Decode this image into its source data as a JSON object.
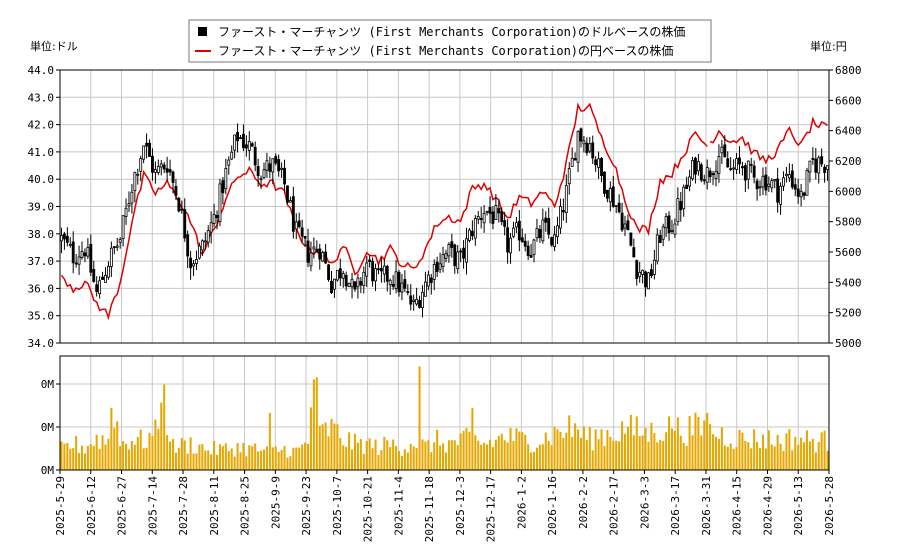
{
  "chart_data": {
    "type": "candlestick",
    "left_unit_label": "単位:ドル",
    "right_unit_label": "単位:円",
    "legend": [
      {
        "label": "ファースト・マーチャンツ (First Merchants Corporation)のドルベースの株価",
        "color": "#000000",
        "marker": "square"
      },
      {
        "label": "ファースト・マーチャンツ (First Merchants Corporation)の円ベースの株価",
        "color": "#dd0000",
        "marker": "line"
      }
    ],
    "y_left": {
      "min": 34.0,
      "max": 44.0,
      "ticks": [
        "34.0",
        "35.0",
        "36.0",
        "37.0",
        "38.0",
        "39.0",
        "40.0",
        "41.0",
        "42.0",
        "43.0",
        "44.0"
      ]
    },
    "y_right": {
      "min": 5000,
      "max": 6800,
      "ticks": [
        "5000",
        "5200",
        "5400",
        "5600",
        "5800",
        "6000",
        "6200",
        "6400",
        "6600",
        "6800"
      ]
    },
    "volume_axis": {
      "ticks": [
        "0M",
        "0M",
        "0M"
      ]
    },
    "x_ticks": [
      "2025-5-29",
      "2025-6-12",
      "2025-6-27",
      "2025-7-14",
      "2025-7-28",
      "2025-8-11",
      "2025-8-25",
      "2025-9-9",
      "2025-9-23",
      "2025-10-7",
      "2025-10-21",
      "2025-11-4",
      "2025-11-18",
      "2025-12-3",
      "2025-12-17",
      "2026-1-2",
      "2026-1-16",
      "2026-2-2",
      "2026-2-17",
      "2026-3-3",
      "2026-3-17",
      "2026-3-31",
      "2026-4-15",
      "2026-4-29",
      "2026-5-13",
      "2026-5-28"
    ],
    "close_anchors": [
      [
        0,
        37.8
      ],
      [
        4,
        37.2
      ],
      [
        8,
        37.5
      ],
      [
        12,
        35.8
      ],
      [
        16,
        37.0
      ],
      [
        20,
        37.8
      ],
      [
        24,
        39.8
      ],
      [
        28,
        41.3
      ],
      [
        32,
        40.2
      ],
      [
        36,
        40.6
      ],
      [
        40,
        39.2
      ],
      [
        44,
        37.0
      ],
      [
        48,
        37.5
      ],
      [
        52,
        38.6
      ],
      [
        56,
        40.2
      ],
      [
        60,
        41.6
      ],
      [
        64,
        41.2
      ],
      [
        68,
        40.3
      ],
      [
        72,
        40.5
      ],
      [
        76,
        39.8
      ],
      [
        80,
        38.0
      ],
      [
        84,
        37.3
      ],
      [
        88,
        37.5
      ],
      [
        92,
        36.2
      ],
      [
        96,
        36.8
      ],
      [
        100,
        35.7
      ],
      [
        104,
        36.9
      ],
      [
        108,
        36.3
      ],
      [
        112,
        36.5
      ],
      [
        116,
        36.0
      ],
      [
        120,
        35.3
      ],
      [
        124,
        36.2
      ],
      [
        128,
        37.0
      ],
      [
        132,
        37.3
      ],
      [
        136,
        37.0
      ],
      [
        140,
        38.2
      ],
      [
        144,
        38.9
      ],
      [
        148,
        38.6
      ],
      [
        152,
        37.6
      ],
      [
        156,
        38.1
      ],
      [
        160,
        37.4
      ],
      [
        164,
        38.2
      ],
      [
        168,
        37.7
      ],
      [
        172,
        39.5
      ],
      [
        176,
        41.7
      ],
      [
        180,
        41.3
      ],
      [
        184,
        40.1
      ],
      [
        188,
        39.3
      ],
      [
        192,
        38.3
      ],
      [
        196,
        36.8
      ],
      [
        200,
        36.2
      ],
      [
        204,
        38.0
      ],
      [
        208,
        38.4
      ],
      [
        212,
        39.4
      ],
      [
        216,
        40.6
      ],
      [
        220,
        40.2
      ],
      [
        224,
        40.9
      ],
      [
        228,
        40.3
      ],
      [
        232,
        40.5
      ],
      [
        236,
        40.0
      ],
      [
        240,
        40.0
      ],
      [
        244,
        39.6
      ],
      [
        248,
        40.2
      ],
      [
        252,
        39.3
      ],
      [
        256,
        40.6
      ],
      [
        260,
        40.6
      ]
    ],
    "jpy_anchors": [
      [
        0,
        5450
      ],
      [
        4,
        5360
      ],
      [
        8,
        5400
      ],
      [
        12,
        5260
      ],
      [
        16,
        5180
      ],
      [
        20,
        5400
      ],
      [
        24,
        5800
      ],
      [
        28,
        6100
      ],
      [
        32,
        5990
      ],
      [
        36,
        6050
      ],
      [
        40,
        5950
      ],
      [
        44,
        5800
      ],
      [
        48,
        5580
      ],
      [
        52,
        5750
      ],
      [
        56,
        5950
      ],
      [
        60,
        6100
      ],
      [
        64,
        6130
      ],
      [
        68,
        6050
      ],
      [
        72,
        6050
      ],
      [
        76,
        5980
      ],
      [
        80,
        5750
      ],
      [
        84,
        5620
      ],
      [
        88,
        5600
      ],
      [
        92,
        5510
      ],
      [
        96,
        5650
      ],
      [
        100,
        5450
      ],
      [
        104,
        5620
      ],
      [
        108,
        5540
      ],
      [
        112,
        5620
      ],
      [
        116,
        5520
      ],
      [
        120,
        5480
      ],
      [
        124,
        5620
      ],
      [
        128,
        5790
      ],
      [
        132,
        5830
      ],
      [
        136,
        5800
      ],
      [
        140,
        6020
      ],
      [
        144,
        6050
      ],
      [
        148,
        5950
      ],
      [
        152,
        5820
      ],
      [
        156,
        5960
      ],
      [
        160,
        5920
      ],
      [
        164,
        6000
      ],
      [
        168,
        5900
      ],
      [
        172,
        6180
      ],
      [
        176,
        6550
      ],
      [
        180,
        6550
      ],
      [
        184,
        6350
      ],
      [
        188,
        6200
      ],
      [
        192,
        5950
      ],
      [
        196,
        5750
      ],
      [
        200,
        5750
      ],
      [
        204,
        6070
      ],
      [
        208,
        6120
      ],
      [
        212,
        6250
      ],
      [
        216,
        6380
      ],
      [
        220,
        6300
      ],
      [
        224,
        6400
      ],
      [
        228,
        6330
      ],
      [
        232,
        6350
      ],
      [
        236,
        6250
      ],
      [
        240,
        6200
      ],
      [
        244,
        6270
      ],
      [
        248,
        6400
      ],
      [
        252,
        6300
      ],
      [
        256,
        6450
      ],
      [
        260,
        6420
      ]
    ],
    "jpy_gap_after_index": 220,
    "volume_anchors": [
      [
        0,
        20
      ],
      [
        4,
        25
      ],
      [
        8,
        22
      ],
      [
        12,
        30
      ],
      [
        16,
        28
      ],
      [
        18,
        60
      ],
      [
        20,
        25
      ],
      [
        24,
        30
      ],
      [
        28,
        28
      ],
      [
        32,
        35
      ],
      [
        35,
        65
      ],
      [
        38,
        22
      ],
      [
        44,
        25
      ],
      [
        50,
        20
      ],
      [
        56,
        20
      ],
      [
        60,
        22
      ],
      [
        66,
        20
      ],
      [
        70,
        18
      ],
      [
        76,
        20
      ],
      [
        80,
        18
      ],
      [
        84,
        25
      ],
      [
        86,
        100
      ],
      [
        88,
        35
      ],
      [
        92,
        40
      ],
      [
        96,
        30
      ],
      [
        100,
        25
      ],
      [
        104,
        25
      ],
      [
        108,
        22
      ],
      [
        112,
        25
      ],
      [
        116,
        22
      ],
      [
        120,
        28
      ],
      [
        124,
        22
      ],
      [
        128,
        28
      ],
      [
        132,
        25
      ],
      [
        136,
        28
      ],
      [
        140,
        30
      ],
      [
        144,
        25
      ],
      [
        148,
        28
      ],
      [
        152,
        32
      ],
      [
        156,
        30
      ],
      [
        160,
        28
      ],
      [
        164,
        30
      ],
      [
        168,
        35
      ],
      [
        172,
        40
      ],
      [
        176,
        38
      ],
      [
        180,
        30
      ],
      [
        184,
        35
      ],
      [
        188,
        35
      ],
      [
        192,
        40
      ],
      [
        196,
        38
      ],
      [
        200,
        35
      ],
      [
        204,
        40
      ],
      [
        208,
        40
      ],
      [
        212,
        38
      ],
      [
        216,
        40
      ],
      [
        220,
        38
      ],
      [
        224,
        35
      ],
      [
        228,
        32
      ],
      [
        232,
        30
      ],
      [
        236,
        30
      ],
      [
        240,
        30
      ],
      [
        244,
        28
      ],
      [
        248,
        30
      ],
      [
        252,
        30
      ],
      [
        256,
        28
      ],
      [
        260,
        28
      ]
    ],
    "volume_spikes": [
      [
        17,
        60
      ],
      [
        34,
        65
      ],
      [
        71,
        55
      ],
      [
        122,
        100
      ],
      [
        140,
        60
      ],
      [
        150,
        35
      ],
      [
        175,
        45
      ],
      [
        192,
        35
      ],
      [
        208,
        40
      ],
      [
        220,
        55
      ]
    ],
    "candle_count": 262,
    "volume_color": "#e6a800",
    "grid": true
  }
}
